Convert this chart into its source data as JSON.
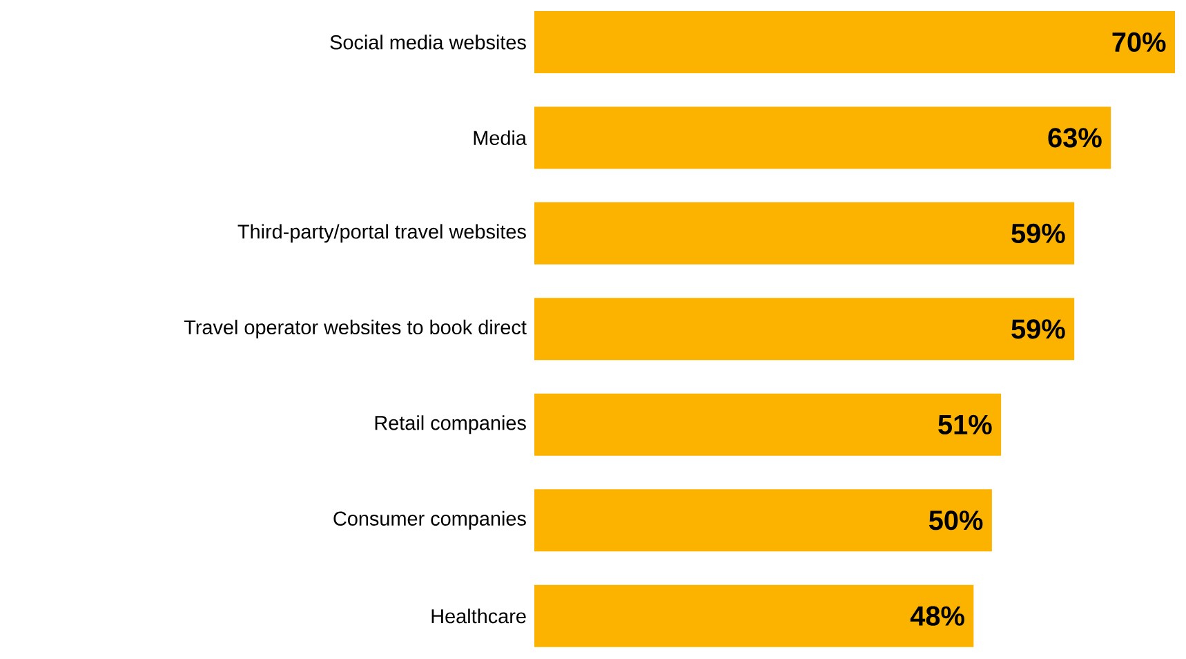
{
  "chart_data": {
    "type": "bar",
    "orientation": "horizontal",
    "categories": [
      "Social media websites",
      "Media",
      "Third-party/portal travel websites",
      "Travel operator websites to book direct",
      "Retail companies",
      "Consumer companies",
      "Healthcare"
    ],
    "values": [
      70,
      63,
      59,
      59,
      51,
      50,
      48
    ],
    "value_labels": [
      "70%",
      "63%",
      "59%",
      "59%",
      "51%",
      "50%",
      "48%"
    ],
    "color": "#fbb300"
  }
}
